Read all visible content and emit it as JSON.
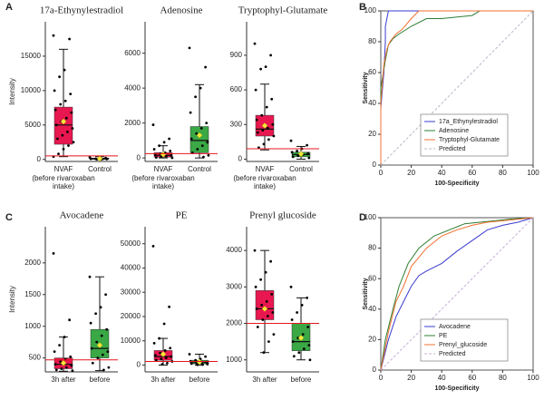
{
  "panel_labels": [
    "A",
    "B",
    "C",
    "D"
  ],
  "chart_data": [
    {
      "type": "box",
      "title": "17a-Ethynylestradiol",
      "y_label": "Intensity",
      "categories": [
        "NVAF",
        "Control"
      ],
      "category_note_lines": [
        "(before rivaroxaban",
        "intake)"
      ],
      "ylim": [
        -300,
        20000
      ],
      "yticks": [
        0,
        5000,
        10000,
        15000
      ],
      "cutoff": 500,
      "cutoff_color": "#e8141e",
      "boxes": [
        {
          "color": "#e8174f",
          "whislo": 400,
          "q1": 2200,
          "med": 5000,
          "q3": 7600,
          "whishi": 16000,
          "mean": 5500,
          "points": [
            18000,
            17500,
            13000,
            12000,
            10000,
            9500,
            8500,
            8000,
            7200,
            6800,
            6000,
            5500,
            5000,
            4500,
            4000,
            3500,
            3000,
            2500,
            2000,
            1500,
            800,
            400
          ]
        },
        {
          "color": "#3aa845",
          "whislo": 0,
          "q1": 20,
          "med": 80,
          "q3": 200,
          "whishi": 400,
          "mean": 120,
          "points": [
            300,
            200,
            150,
            100,
            80,
            50,
            20,
            10
          ]
        }
      ]
    },
    {
      "type": "box",
      "title": "Adenosine",
      "categories": [
        "NVAF",
        "Control"
      ],
      "category_note_lines": [
        "(before rivaroxaban",
        "intake)"
      ],
      "ylim": [
        -200,
        7800
      ],
      "yticks": [
        0,
        2000,
        4000,
        6000
      ],
      "cutoff": 250,
      "cutoff_color": "#e8141e",
      "boxes": [
        {
          "color": "#e8174f",
          "whislo": 0,
          "q1": 50,
          "med": 150,
          "q3": 300,
          "whishi": 700,
          "mean": 200,
          "points": [
            1900,
            1100,
            900,
            700,
            500,
            400,
            300,
            250,
            200,
            150,
            100,
            60,
            30,
            10
          ]
        },
        {
          "color": "#3aa845",
          "whislo": 0,
          "q1": 300,
          "med": 1000,
          "q3": 1800,
          "whishi": 4200,
          "mean": 1300,
          "points": [
            6300,
            5200,
            4000,
            3500,
            2600,
            2000,
            1700,
            1400,
            1100,
            900,
            700,
            500,
            300,
            150,
            50
          ]
        }
      ]
    },
    {
      "type": "box",
      "title": "Tryptophyl-Glutamate",
      "categories": [
        "NVAF",
        "Control"
      ],
      "category_note_lines": [
        "(before rivaroxaban",
        "intake)"
      ],
      "ylim": [
        -20,
        1190
      ],
      "yticks": [
        0,
        300,
        600,
        900
      ],
      "cutoff": 90,
      "cutoff_color": "#e8141e",
      "boxes": [
        {
          "color": "#e8174f",
          "whislo": 80,
          "q1": 200,
          "med": 260,
          "q3": 380,
          "whishi": 650,
          "mean": 290,
          "points": [
            1000,
            900,
            800,
            780,
            600,
            520,
            450,
            380,
            340,
            300,
            270,
            250,
            230,
            200,
            170,
            130,
            100
          ]
        },
        {
          "color": "#3aa845",
          "whislo": 0,
          "q1": 20,
          "med": 40,
          "q3": 60,
          "whishi": 110,
          "mean": 45,
          "points": [
            160,
            120,
            90,
            70,
            60,
            50,
            40,
            30,
            20,
            10
          ]
        }
      ]
    },
    {
      "type": "box",
      "title": "Avocadene",
      "y_label": "Intensity",
      "categories": [
        "3h after",
        "before"
      ],
      "ylim": [
        280,
        2570
      ],
      "yticks": [
        500,
        1000,
        1500,
        2000
      ],
      "cutoff": 470,
      "cutoff_color": "#e8141e",
      "boxes": [
        {
          "color": "#e8174f",
          "whislo": 290,
          "q1": 330,
          "med": 400,
          "q3": 500,
          "whishi": 830,
          "mean": 420,
          "points": [
            2150,
            1100,
            830,
            700,
            600,
            520,
            480,
            440,
            400,
            380,
            350,
            330,
            310,
            300
          ]
        },
        {
          "color": "#3aa845",
          "whislo": 300,
          "q1": 500,
          "med": 650,
          "q3": 950,
          "whishi": 1780,
          "mean": 700,
          "points": [
            1780,
            1500,
            1300,
            1200,
            1050,
            950,
            850,
            750,
            650,
            600,
            550,
            500,
            420,
            350,
            310
          ]
        }
      ]
    },
    {
      "type": "box",
      "title": "PE",
      "categories": [
        "3h after",
        "before"
      ],
      "ylim": [
        -2800,
        57000
      ],
      "yticks": [
        0,
        10000,
        20000,
        30000,
        40000,
        50000
      ],
      "cutoff": 1500,
      "cutoff_color": "#e8141e",
      "boxes": [
        {
          "color": "#e8174f",
          "whislo": 0,
          "q1": 2000,
          "med": 3500,
          "q3": 6000,
          "whishi": 11000,
          "mean": 4500,
          "points": [
            49000,
            24000,
            17000,
            11000,
            9000,
            7000,
            6000,
            5000,
            4000,
            3500,
            3000,
            2500,
            2000,
            1500,
            800,
            300
          ]
        },
        {
          "color": "#3aa845",
          "whislo": 0,
          "q1": 500,
          "med": 1000,
          "q3": 2000,
          "whishi": 4500,
          "mean": 1300,
          "points": [
            4500,
            3500,
            2500,
            2000,
            1600,
            1200,
            1000,
            800,
            600,
            400,
            200,
            100
          ]
        }
      ]
    },
    {
      "type": "box",
      "title": "Prenyl glucoside",
      "categories": [
        "3h after",
        "before"
      ],
      "ylim": [
        670,
        4650
      ],
      "yticks": [
        1000,
        2000,
        3000,
        4000
      ],
      "cutoff": 2000,
      "cutoff_color": "#e8141e",
      "boxes": [
        {
          "color": "#e8174f",
          "whislo": 1200,
          "q1": 2100,
          "med": 2400,
          "q3": 2900,
          "whishi": 4000,
          "mean": 2400,
          "points": [
            4000,
            3700,
            3400,
            3200,
            3000,
            2800,
            2600,
            2500,
            2400,
            2300,
            2200,
            2100,
            1900,
            1700,
            1500,
            1200
          ]
        },
        {
          "color": "#3aa845",
          "whislo": 1000,
          "q1": 1250,
          "med": 1500,
          "q3": 2000,
          "whishi": 2700,
          "mean": 1600,
          "points": [
            3000,
            2700,
            2500,
            2300,
            2100,
            1900,
            1700,
            1600,
            1500,
            1400,
            1300,
            1200,
            1100,
            1000
          ]
        }
      ]
    },
    {
      "type": "line",
      "x_label": "100-Specificity",
      "y_label": "Sensitivity",
      "xlim": [
        0,
        100
      ],
      "ylim": [
        0,
        100
      ],
      "xticks": [
        0,
        20,
        40,
        60,
        80,
        100
      ],
      "yticks": [
        0,
        20,
        40,
        60,
        80,
        100
      ],
      "legend": "bottom-right",
      "series": [
        {
          "name": "17a_Ethynylestradiol",
          "color": "#3a3ad0",
          "x": [
            0,
            0,
            2,
            3,
            3,
            4,
            5,
            100
          ],
          "values": [
            0,
            37,
            60,
            80,
            90,
            95,
            100,
            100
          ]
        },
        {
          "name": "Adenosine",
          "color": "#2e7d32",
          "x": [
            0,
            0,
            3,
            5,
            8,
            12,
            20,
            30,
            40,
            60,
            65,
            100
          ],
          "values": [
            0,
            50,
            68,
            78,
            82,
            85,
            90,
            95,
            95,
            97,
            100,
            100
          ]
        },
        {
          "name": "Tryptophyl-Glutamate",
          "color": "#f07030",
          "x": [
            0,
            0,
            2,
            4,
            6,
            10,
            14,
            20,
            25,
            100
          ],
          "values": [
            0,
            40,
            65,
            75,
            80,
            85,
            88,
            95,
            100,
            100
          ]
        },
        {
          "name": "Predicted",
          "color": "#b8b8c8",
          "dash": true,
          "x": [
            0,
            100
          ],
          "values": [
            0,
            100
          ]
        }
      ]
    },
    {
      "type": "line",
      "x_label": "100-Specificity",
      "y_label": "Sensitivity",
      "xlim": [
        0,
        100
      ],
      "ylim": [
        0,
        100
      ],
      "xticks": [
        0,
        20,
        40,
        60,
        80,
        100
      ],
      "yticks": [
        0,
        20,
        40,
        60,
        80,
        100
      ],
      "legend": "bottom-right",
      "series": [
        {
          "name": "Avocadene",
          "color": "#3a3ad0",
          "x": [
            0,
            5,
            10,
            15,
            20,
            25,
            30,
            40,
            50,
            60,
            70,
            80,
            90,
            100
          ],
          "values": [
            0,
            20,
            35,
            45,
            55,
            62,
            65,
            70,
            78,
            85,
            92,
            95,
            97,
            100
          ]
        },
        {
          "name": "PE",
          "color": "#2e7d32",
          "x": [
            0,
            3,
            8,
            12,
            18,
            25,
            35,
            45,
            55,
            65,
            75,
            85,
            100
          ],
          "values": [
            0,
            20,
            40,
            55,
            70,
            80,
            88,
            92,
            96,
            97,
            98,
            99,
            100
          ]
        },
        {
          "name": "Prenyl_glucoside",
          "color": "#f07030",
          "x": [
            0,
            5,
            10,
            15,
            20,
            30,
            40,
            50,
            60,
            70,
            80,
            100
          ],
          "values": [
            0,
            25,
            45,
            55,
            68,
            80,
            88,
            92,
            95,
            97,
            98,
            100
          ]
        },
        {
          "name": "Predicted",
          "color": "#c8b0d8",
          "dash": true,
          "x": [
            0,
            100
          ],
          "values": [
            0,
            100
          ]
        }
      ]
    }
  ]
}
